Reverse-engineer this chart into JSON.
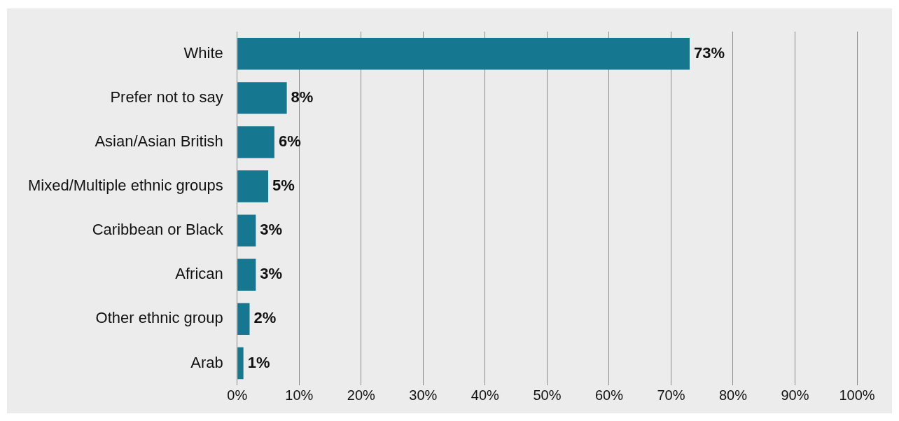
{
  "chart_data": {
    "type": "bar",
    "orientation": "horizontal",
    "categories": [
      "White",
      "Prefer not to say",
      "Asian/Asian British",
      "Mixed/Multiple ethnic groups",
      "Caribbean or Black",
      "African",
      "Other ethnic group",
      "Arab"
    ],
    "values": [
      73,
      8,
      6,
      5,
      3,
      3,
      2,
      1
    ],
    "value_labels": [
      "73%",
      "8%",
      "6%",
      "5%",
      "3%",
      "3%",
      "2%",
      "1%"
    ],
    "color": "#167890",
    "xlim": [
      0,
      100
    ],
    "xticks": [
      {
        "value": 0,
        "label": "0%"
      },
      {
        "value": 10,
        "label": "10%"
      },
      {
        "value": 20,
        "label": "20%"
      },
      {
        "value": 30,
        "label": "30%"
      },
      {
        "value": 40,
        "label": "40%"
      },
      {
        "value": 50,
        "label": "50%"
      },
      {
        "value": 60,
        "label": "60%"
      },
      {
        "value": 70,
        "label": "70%"
      },
      {
        "value": 80,
        "label": "80%"
      },
      {
        "value": 90,
        "label": "90%"
      },
      {
        "value": 100,
        "label": "100%"
      }
    ],
    "grid": "x",
    "legend": false
  }
}
